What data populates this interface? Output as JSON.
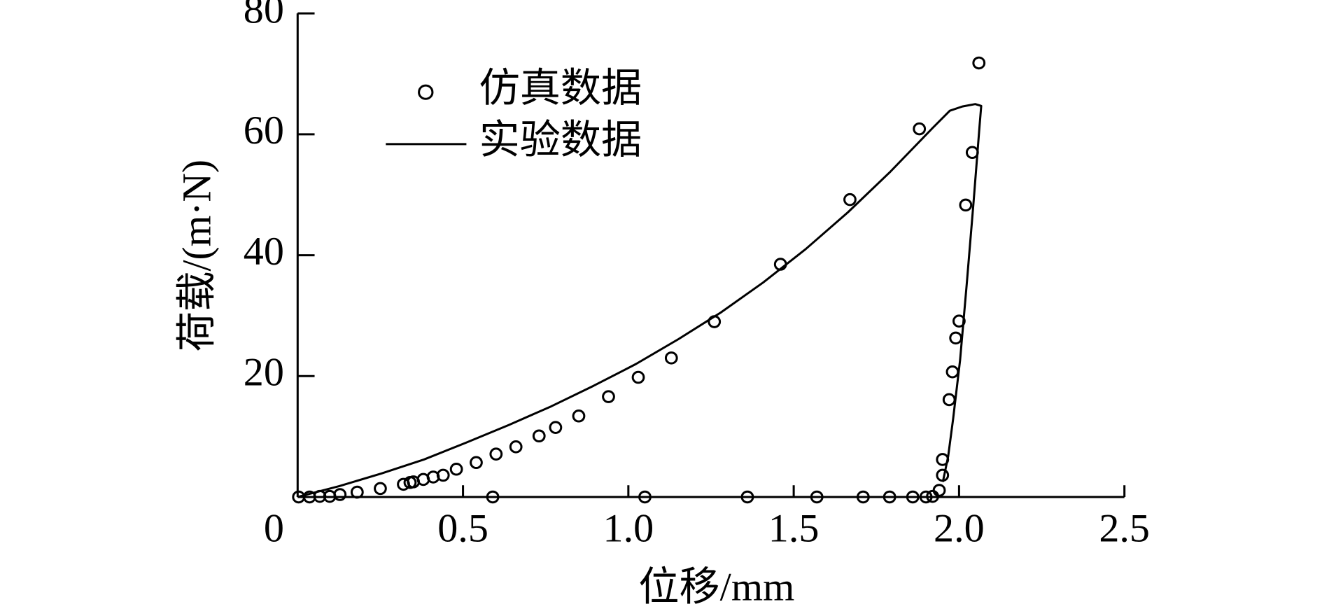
{
  "chart_data": {
    "type": "scatter",
    "x_label": "位移/mm",
    "y_label": "荷载/(m·N)",
    "xlim": [
      0,
      2.5
    ],
    "ylim": [
      0,
      80
    ],
    "xticks": [
      0,
      0.5,
      {
        "value": 1,
        "label": "1.0"
      },
      1.5,
      {
        "value": 2,
        "label": "2.0"
      },
      2.5
    ],
    "yticks": [
      20,
      40,
      60,
      80
    ],
    "grid": false,
    "legend": "upper left",
    "series": [
      {
        "name": "仿真数据",
        "type": "scatter",
        "color": "#000000",
        "x": [
          0.003,
          0.036,
          0.067,
          0.097,
          0.128,
          0.18,
          0.25,
          0.32,
          0.34,
          0.35,
          0.38,
          0.41,
          0.44,
          0.48,
          0.54,
          0.6,
          0.66,
          0.73,
          0.78,
          0.85,
          0.94,
          1.03,
          1.13,
          1.26,
          1.46,
          1.67,
          1.88,
          2.06,
          2.04,
          2.02,
          2.0,
          1.99,
          1.98,
          1.97,
          1.95,
          1.95,
          1.94,
          1.92,
          1.9,
          1.86,
          1.79,
          1.71,
          1.57,
          1.36,
          1.05,
          0.59
        ],
        "values": [
          0,
          0,
          0.1,
          0.1,
          0.4,
          0.8,
          1.4,
          2.1,
          2.4,
          2.5,
          2.9,
          3.3,
          3.6,
          4.6,
          5.7,
          7.1,
          8.3,
          10.1,
          11.5,
          13.4,
          16.6,
          19.8,
          23.0,
          29.0,
          38.5,
          49.2,
          60.9,
          71.8,
          57.0,
          48.3,
          29.1,
          26.3,
          20.7,
          16.1,
          6.2,
          3.6,
          1.1,
          0.1,
          0,
          0,
          0,
          0,
          0,
          0,
          0,
          0
        ]
      },
      {
        "name": "实验数据",
        "type": "line",
        "color": "#000000",
        "x": [
          0,
          0.126,
          0.254,
          0.382,
          0.51,
          0.638,
          0.767,
          0.895,
          1.023,
          1.151,
          1.279,
          1.408,
          1.536,
          1.664,
          1.792,
          1.921,
          1.972,
          2.01,
          2.049,
          2.067,
          2.062,
          2.044,
          2.023,
          2.003,
          1.982,
          1.967,
          1.951
        ],
        "values": [
          0,
          1.8,
          3.9,
          6.2,
          9.0,
          11.9,
          15.0,
          18.4,
          22.0,
          26.1,
          30.5,
          35.5,
          41.0,
          47.1,
          53.8,
          61.1,
          63.9,
          64.6,
          65.0,
          64.7,
          61.4,
          48.9,
          35.1,
          22.6,
          12.9,
          6.7,
          2.5
        ]
      }
    ]
  }
}
